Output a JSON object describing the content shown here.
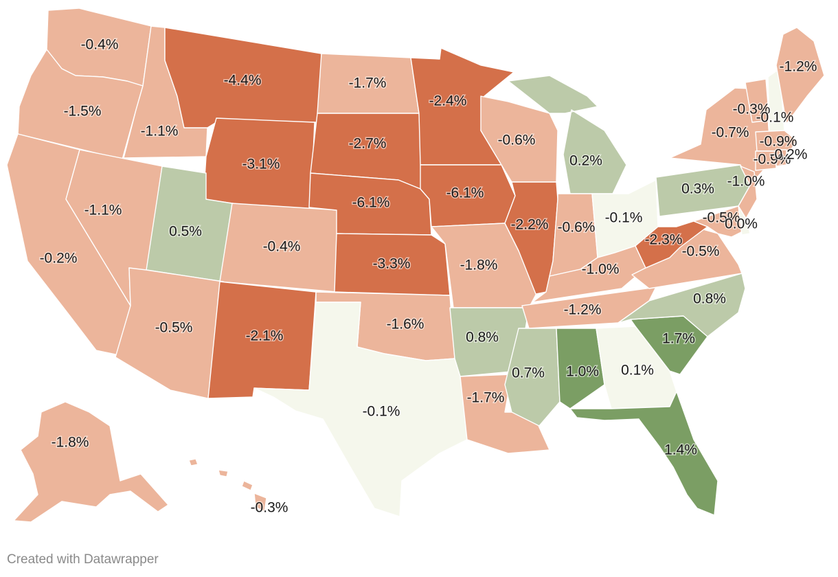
{
  "credit": "Created with Datawrapper",
  "colors": {
    "strong_negative": "#d4704a",
    "negative": "#ecb59b",
    "near_zero": "#f5f7ec",
    "positive": "#bccaa9",
    "strong_positive": "#7b9e64"
  },
  "states": [
    {
      "id": "WA",
      "label": "-0.4%",
      "value": -0.4
    },
    {
      "id": "OR",
      "label": "-1.5%",
      "value": -1.5
    },
    {
      "id": "CA",
      "label": "-0.2%",
      "value": -0.2
    },
    {
      "id": "ID",
      "label": "-1.1%",
      "value": -1.1
    },
    {
      "id": "NV",
      "label": "-1.1%",
      "value": -1.1
    },
    {
      "id": "MT",
      "label": "-4.4%",
      "value": -4.4
    },
    {
      "id": "WY",
      "label": "-3.1%",
      "value": -3.1
    },
    {
      "id": "UT",
      "label": "0.5%",
      "value": 0.5
    },
    {
      "id": "CO",
      "label": "-0.4%",
      "value": -0.4
    },
    {
      "id": "AZ",
      "label": "-0.5%",
      "value": -0.5
    },
    {
      "id": "NM",
      "label": "-2.1%",
      "value": -2.1
    },
    {
      "id": "ND",
      "label": "-1.7%",
      "value": -1.7
    },
    {
      "id": "SD",
      "label": "-2.7%",
      "value": -2.7
    },
    {
      "id": "NE",
      "label": "-6.1%",
      "value": -6.1
    },
    {
      "id": "KS",
      "label": "-3.3%",
      "value": -3.3
    },
    {
      "id": "OK",
      "label": "-1.6%",
      "value": -1.6
    },
    {
      "id": "TX",
      "label": "-0.1%",
      "value": -0.1
    },
    {
      "id": "MN",
      "label": "-2.4%",
      "value": -2.4
    },
    {
      "id": "IA",
      "label": "-6.1%",
      "value": -6.1
    },
    {
      "id": "MO",
      "label": "-1.8%",
      "value": -1.8
    },
    {
      "id": "AR",
      "label": "0.8%",
      "value": 0.8
    },
    {
      "id": "LA",
      "label": "-1.7%",
      "value": -1.7
    },
    {
      "id": "WI",
      "label": "-0.6%",
      "value": -0.6
    },
    {
      "id": "IL",
      "label": "-2.2%",
      "value": -2.2
    },
    {
      "id": "MI",
      "label": "0.2%",
      "value": 0.2
    },
    {
      "id": "IN",
      "label": "-0.6%",
      "value": -0.6
    },
    {
      "id": "OH",
      "label": "-0.1%",
      "value": -0.1
    },
    {
      "id": "KY",
      "label": "-1.0%",
      "value": -1.0
    },
    {
      "id": "TN",
      "label": "-1.2%",
      "value": -1.2
    },
    {
      "id": "MS",
      "label": "0.7%",
      "value": 0.7
    },
    {
      "id": "AL",
      "label": "1.0%",
      "value": 1.0
    },
    {
      "id": "GA",
      "label": "0.1%",
      "value": 0.1
    },
    {
      "id": "FL",
      "label": "1.4%",
      "value": 1.4
    },
    {
      "id": "SC",
      "label": "1.7%",
      "value": 1.7
    },
    {
      "id": "NC",
      "label": "0.8%",
      "value": 0.8
    },
    {
      "id": "VA",
      "label": "-0.5%",
      "value": -0.5
    },
    {
      "id": "WV",
      "label": "-2.3%",
      "value": -2.3
    },
    {
      "id": "PA",
      "label": "0.3%",
      "value": 0.3
    },
    {
      "id": "NY",
      "label": "-0.7%",
      "value": -0.7
    },
    {
      "id": "NJ",
      "label": "-1.0%",
      "value": -1.0
    },
    {
      "id": "MD",
      "label": "-0.5%",
      "value": -0.5
    },
    {
      "id": "DE",
      "label": "0.0%",
      "value": 0.0
    },
    {
      "id": "VT",
      "label": "-0.3%",
      "value": -0.3
    },
    {
      "id": "NH",
      "label": "-0.1%",
      "value": -0.1
    },
    {
      "id": "ME",
      "label": "-1.2%",
      "value": -1.2
    },
    {
      "id": "MA",
      "label": "-0.9%",
      "value": -0.9
    },
    {
      "id": "CT",
      "label": "-0.9%",
      "value": -0.9
    },
    {
      "id": "RI",
      "label": "-0.2%",
      "value": -0.2
    },
    {
      "id": "AK",
      "label": "-1.8%",
      "value": -1.8
    },
    {
      "id": "HI",
      "label": "-0.3%",
      "value": -0.3
    }
  ]
}
